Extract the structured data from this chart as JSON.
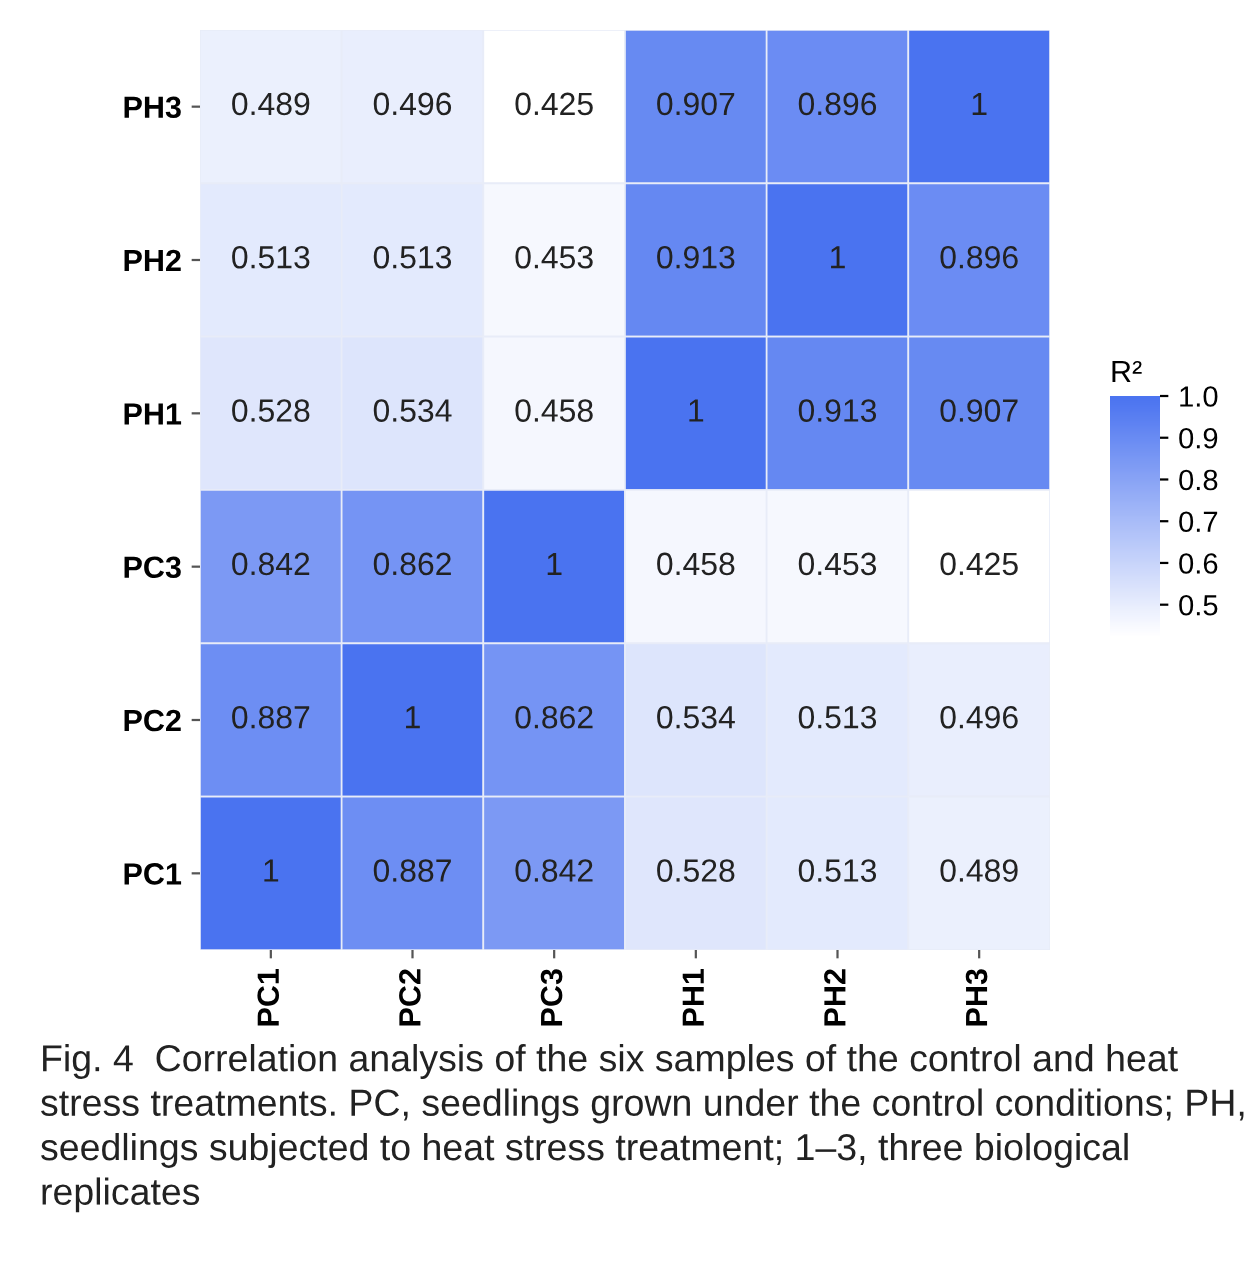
{
  "chart_data": {
    "type": "heatmap",
    "categories": [
      "PC1",
      "PC2",
      "PC3",
      "PH1",
      "PH2",
      "PH3"
    ],
    "y_categories": [
      "PH3",
      "PH2",
      "PH1",
      "PC3",
      "PC2",
      "PC1"
    ],
    "cells": [
      [
        0.489,
        0.496,
        0.425,
        0.907,
        0.896,
        1
      ],
      [
        0.513,
        0.513,
        0.453,
        0.913,
        1,
        0.896
      ],
      [
        0.528,
        0.534,
        0.458,
        1,
        0.913,
        0.907
      ],
      [
        0.842,
        0.862,
        1,
        0.458,
        0.453,
        0.425
      ],
      [
        0.887,
        1,
        0.862,
        0.534,
        0.513,
        0.496
      ],
      [
        1,
        0.887,
        0.842,
        0.528,
        0.513,
        0.489
      ]
    ],
    "data_labels": true,
    "clabel": "R²",
    "clim": [
      0.425,
      1
    ],
    "cticks": [
      {
        "value": 0.5,
        "label": "0.5"
      },
      {
        "value": 0.6,
        "label": "0.6"
      },
      {
        "value": 0.7,
        "label": "0.7"
      },
      {
        "value": 0.8,
        "label": "0.8"
      },
      {
        "value": 0.9,
        "label": "0.9"
      },
      {
        "value": 1.0,
        "label": "1.0"
      }
    ],
    "colors": [
      "#ffffff",
      "#4a73f0"
    ],
    "annotations": [
      "Fig. 4  Correlation analysis of the six samples of the control and heat stress treatments. PC, seedlings grown under the control conditions; PH, seedlings subjected to heat stress treatment; 1–3, three biological replicates"
    ]
  }
}
